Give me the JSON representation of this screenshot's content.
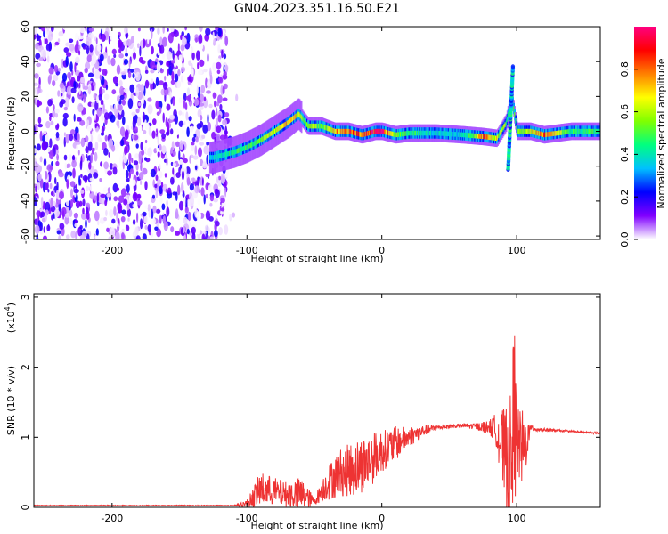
{
  "title": "GN04.2023.351.16.50.E21",
  "chart_data": [
    {
      "type": "heatmap",
      "xlabel": "Height of straight line (km)",
      "ylabel": "Frequency (Hz)",
      "xlim": [
        -258,
        162
      ],
      "ylim": [
        -62,
        60
      ],
      "xticks": [
        -200,
        -100,
        0,
        100
      ],
      "yticks": [
        -60,
        -40,
        -20,
        0,
        20,
        40,
        60
      ],
      "colorbar": {
        "label": "Normalized spectral amplitude",
        "range": [
          0.0,
          1.0
        ],
        "ticks": [
          0.0,
          0.2,
          0.4,
          0.6,
          0.8
        ],
        "colormap": [
          "#ffffff",
          "#8000ff",
          "#0000ff",
          "#00c0ff",
          "#00ff80",
          "#80ff00",
          "#ffff00",
          "#ff8000",
          "#ff0000",
          "#ff0080"
        ]
      },
      "ridge": {
        "x": [
          -125,
          -110,
          -100,
          -90,
          -80,
          -70,
          -62,
          -55,
          -45,
          -35,
          -25,
          -15,
          -5,
          0,
          10,
          20,
          40,
          60,
          75,
          85,
          92,
          96,
          100,
          110,
          120,
          140,
          162
        ],
        "freq": [
          -15,
          -12,
          -9,
          -5,
          0,
          5,
          10,
          3,
          3,
          0,
          0,
          -2,
          0,
          0,
          -2,
          -1,
          -1,
          -2,
          -3,
          -4,
          5,
          20,
          0,
          0,
          -2,
          0,
          0
        ],
        "amp": [
          0.4,
          0.5,
          0.5,
          0.6,
          0.7,
          0.8,
          0.7,
          0.6,
          0.6,
          0.8,
          0.9,
          0.9,
          1.0,
          1.0,
          0.6,
          0.5,
          0.4,
          0.4,
          0.9,
          0.7,
          0.6,
          0.5,
          0.6,
          0.7,
          0.9,
          0.5,
          0.5
        ]
      }
    },
    {
      "type": "line",
      "xlabel": "Height of straight line (km)",
      "ylabel": "SNR (10 * v/v)",
      "yscale_label": "(x10",
      "yscale_exp": "4",
      "yscale_close": ")",
      "xlim": [
        -258,
        162
      ],
      "ylim": [
        0,
        3.05
      ],
      "xticks": [
        -200,
        -100,
        0,
        100
      ],
      "yticks": [
        0,
        1,
        2,
        3
      ],
      "color": "#ee3333",
      "envelope": {
        "x": [
          -258,
          -110,
          -100,
          -90,
          -80,
          -70,
          -60,
          -50,
          -40,
          -30,
          -20,
          -10,
          0,
          10,
          20,
          30,
          40,
          50,
          60,
          70,
          80,
          85,
          90,
          95,
          98,
          100,
          105,
          110,
          120,
          140,
          162
        ],
        "base": [
          0.02,
          0.02,
          0.05,
          0.25,
          0.22,
          0.18,
          0.18,
          0.08,
          0.35,
          0.5,
          0.55,
          0.65,
          0.8,
          0.9,
          1.0,
          1.08,
          1.13,
          1.15,
          1.16,
          1.15,
          1.14,
          1.1,
          0.8,
          0.6,
          1.0,
          0.9,
          0.8,
          1.12,
          1.1,
          1.08,
          1.05
        ],
        "amp": [
          0.0,
          0.0,
          0.05,
          0.25,
          0.2,
          0.18,
          0.25,
          0.05,
          0.25,
          0.35,
          0.4,
          0.4,
          0.3,
          0.25,
          0.15,
          0.08,
          0.04,
          0.03,
          0.03,
          0.05,
          0.1,
          0.25,
          0.6,
          0.9,
          1.6,
          0.5,
          0.6,
          0.05,
          0.02,
          0.01,
          0.01
        ]
      }
    }
  ]
}
